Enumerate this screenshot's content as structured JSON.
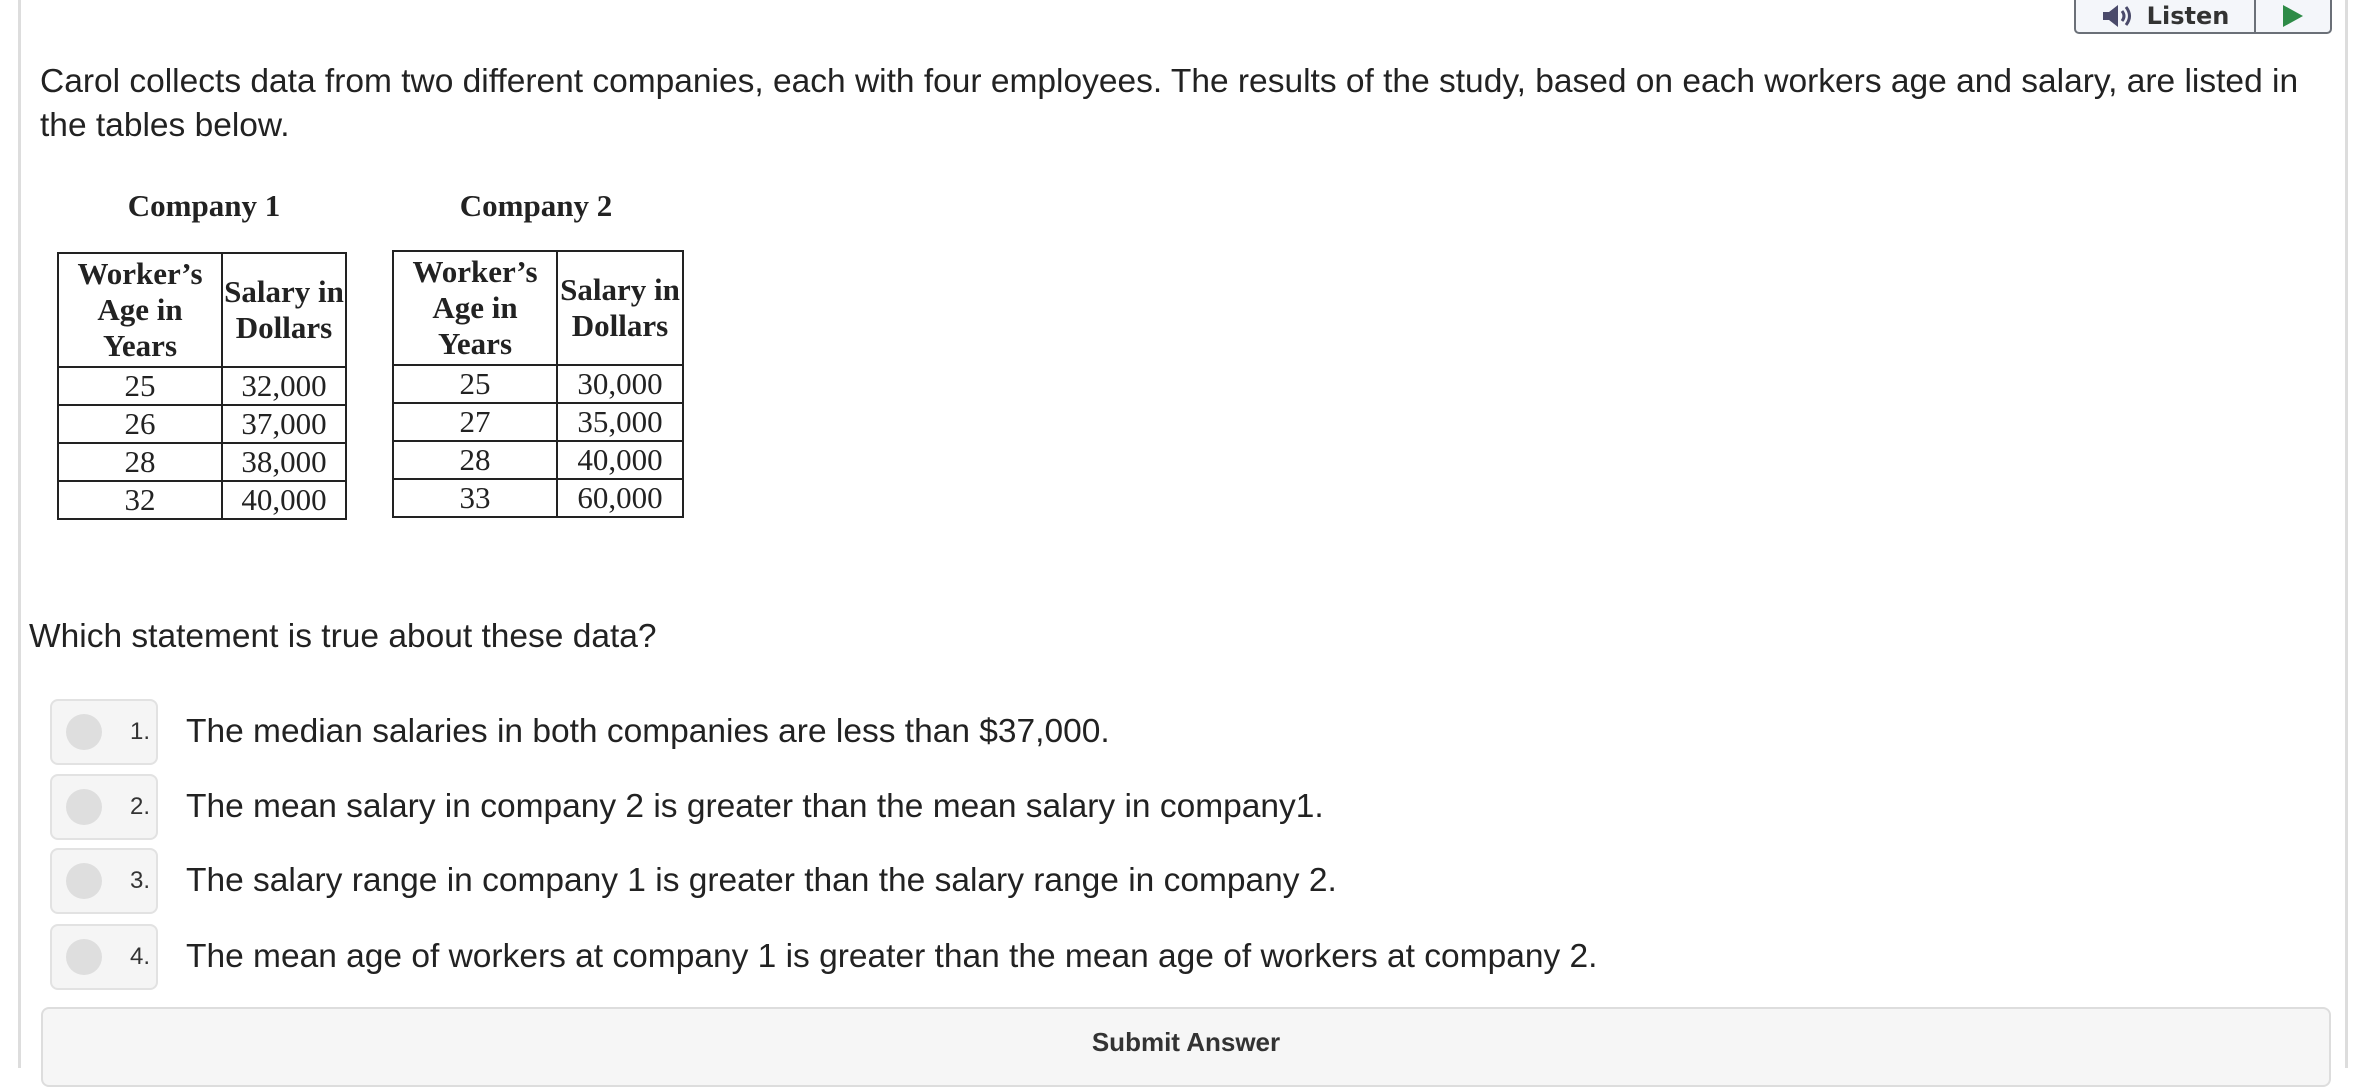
{
  "toolbar": {
    "listen_label": "Listen",
    "colors": {
      "play": "#2e8b47",
      "speaker": "#4a4a6a"
    }
  },
  "question": {
    "stem": "Carol collects data from two different companies, each with four employees. The results of the study, based on each workers age and salary, are listed in the tables below.",
    "prompt": "Which statement is true about these data?"
  },
  "tables": [
    {
      "title": "Company 1",
      "headers": [
        "Worker’s Age in Years",
        "Salary in Dollars"
      ],
      "rows": [
        [
          "25",
          "32,000"
        ],
        [
          "26",
          "37,000"
        ],
        [
          "28",
          "38,000"
        ],
        [
          "32",
          "40,000"
        ]
      ]
    },
    {
      "title": "Company 2",
      "headers": [
        "Worker’s Age in Years",
        "Salary in Dollars"
      ],
      "rows": [
        [
          "25",
          "30,000"
        ],
        [
          "27",
          "35,000"
        ],
        [
          "28",
          "40,000"
        ],
        [
          "33",
          "60,000"
        ]
      ]
    }
  ],
  "options": [
    {
      "number": "1.",
      "text": "The median salaries in both companies are less than $37,000."
    },
    {
      "number": "2.",
      "text": "The mean salary in company 2 is greater than the mean salary in company1."
    },
    {
      "number": "3.",
      "text": "The salary range in company 1 is greater than the salary range in company 2."
    },
    {
      "number": "4.",
      "text": "The mean age of workers at company 1 is greater than the mean age of workers at company 2."
    }
  ],
  "submit_label": "Submit Answer"
}
